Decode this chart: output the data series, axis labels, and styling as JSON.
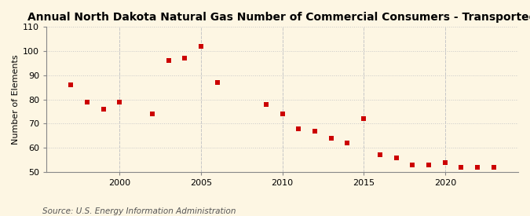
{
  "title": "Annual North Dakota Natural Gas Number of Commercial Consumers - Transported",
  "ylabel": "Number of Elements",
  "source": "Source: U.S. Energy Information Administration",
  "background_color": "#fdf6e3",
  "plot_bg_color": "#fdf6e3",
  "years": [
    1997,
    1998,
    1999,
    2000,
    2002,
    2003,
    2004,
    2005,
    2006,
    2009,
    2010,
    2011,
    2012,
    2013,
    2014,
    2015,
    2016,
    2017,
    2018,
    2019,
    2020,
    2021,
    2022,
    2023
  ],
  "values": [
    86,
    79,
    76,
    79,
    74,
    96,
    97,
    102,
    87,
    78,
    74,
    68,
    67,
    64,
    62,
    72,
    57,
    56,
    53,
    53,
    54,
    52,
    52,
    52
  ],
  "xlim": [
    1995.5,
    2024.5
  ],
  "ylim": [
    50,
    110
  ],
  "yticks": [
    50,
    60,
    70,
    80,
    90,
    100,
    110
  ],
  "xticks": [
    2000,
    2005,
    2010,
    2015,
    2020
  ],
  "marker_color": "#cc0000",
  "marker_size": 25,
  "grid_color": "#c8c8c8",
  "spine_color": "#888888",
  "title_fontsize": 10,
  "tick_fontsize": 8,
  "ylabel_fontsize": 8,
  "source_fontsize": 7.5
}
